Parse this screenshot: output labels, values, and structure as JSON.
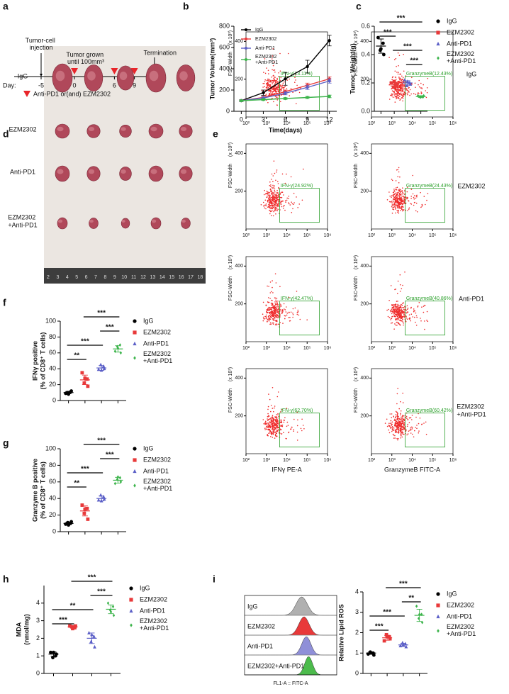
{
  "panel_labels": [
    "a",
    "b",
    "c",
    "d",
    "e",
    "f",
    "g",
    "h",
    "i"
  ],
  "timeline": {
    "day_label": "Day:",
    "days": [
      -5,
      0,
      3,
      6,
      9,
      12
    ],
    "treatment_days": [
      0,
      3,
      6,
      9
    ],
    "injection": "Tumor-cell injection",
    "grown": "Tumor grown until 100mm³",
    "termination": "Termination",
    "legend": "Anti-PD1 or(and) EZM2302"
  },
  "photo": {
    "groups": [
      "IgG",
      "EZM2302",
      "Anti-PD1",
      "EZM2302 +Anti-PD1"
    ],
    "ruler": [
      2,
      3,
      4,
      5,
      6,
      7,
      8,
      9,
      10,
      11,
      12,
      13,
      14,
      15,
      16,
      17,
      18
    ]
  },
  "flow": {
    "y_axis_label": "FSC-Width",
    "y_scale_label": "(x 10³)",
    "ylim": [
      0,
      450
    ],
    "yticks": [
      200,
      400
    ],
    "xlim": [
      2,
      6
    ],
    "xticks": [
      {
        "value": 2,
        "label": "10²"
      },
      {
        "value": 3,
        "label": "10³"
      },
      {
        "value": 4,
        "label": "10⁴"
      },
      {
        "value": 5,
        "label": "10⁵"
      },
      {
        "value": 6,
        "label": "10⁶"
      }
    ],
    "xlabels": [
      "IFNγ PE-A",
      "GranzymeB FITC-A"
    ],
    "groups": [
      {
        "name": "IgG",
        "gates": [
          "IFN-γ(13.11%)",
          "GranzymeB(12.43%)"
        ]
      },
      {
        "name": "EZM2302",
        "gates": [
          "IFN-γ(24.92%)",
          "GranzymeB(24.43%)"
        ]
      },
      {
        "name": "Anti-PD1",
        "gates": [
          "IFN-γ(42.47%)",
          "GranzymeB(40.86%)"
        ]
      },
      {
        "name": "EZM2302 +Anti-PD1",
        "gates": [
          "IFN-γ(62.70%)",
          "GranzymeB(60.42%)"
        ]
      }
    ]
  },
  "histogram": {
    "groups": [
      "IgG",
      "EZM2302",
      "Anti-PD1",
      "EZM2302+Anti-PD1"
    ],
    "colors": [
      "#b0b0b0",
      "#e8393a",
      "#8f8fd8",
      "#4cbb4c"
    ],
    "xlabel": "FL1-A :: FITC-A"
  },
  "chart_data": [
    {
      "type": "line",
      "xlabel": "Time(days)",
      "ylabel": [
        "Tumor Volume(mm³)"
      ],
      "x": [
        0,
        3,
        6,
        9,
        12
      ],
      "xlim": [
        -1,
        13
      ],
      "xticks": [
        0,
        3,
        6,
        9,
        12
      ],
      "ylim": [
        0,
        800
      ],
      "yticks": [
        0,
        200,
        400,
        600,
        800
      ],
      "legend": "upper left",
      "series": [
        {
          "name": "IgG",
          "color": "#000000",
          "values": [
            100,
            175,
            305,
            420,
            665
          ],
          "errors": [
            8,
            25,
            60,
            60,
            50
          ]
        },
        {
          "name": "EZM2302",
          "color": "#e8393a",
          "values": [
            100,
            130,
            185,
            245,
            305
          ],
          "errors": [
            5,
            10,
            15,
            20,
            20
          ]
        },
        {
          "name": "Anti-PD1",
          "color": "#5b5fc7",
          "values": [
            100,
            125,
            170,
            225,
            285
          ],
          "errors": [
            5,
            10,
            15,
            20,
            20
          ]
        },
        {
          "name": "EZM2302 +Anti-PD1",
          "color": "#3cb44b",
          "values": [
            100,
            110,
            120,
            130,
            140
          ],
          "errors": [
            5,
            8,
            8,
            10,
            12
          ]
        }
      ]
    },
    {
      "type": "dot",
      "ylabel": [
        "Tumor Weight(g)"
      ],
      "ylim": [
        0,
        0.6
      ],
      "yticks": [
        {
          "value": 0,
          "label": "0.0"
        },
        {
          "value": 0.2,
          "label": "0.2"
        },
        {
          "value": 0.4,
          "label": "0.4"
        },
        {
          "value": 0.6,
          "label": "0.6"
        }
      ],
      "series": [
        {
          "name": "IgG",
          "color": "#000000",
          "marker": "circle",
          "values": [
            0.52,
            0.48,
            0.43,
            0.4,
            0.44
          ],
          "mean": 0.46,
          "error": 0.05
        },
        {
          "name": "EZM2302",
          "color": "#e8393a",
          "marker": "square",
          "values": [
            0.2,
            0.18,
            0.17,
            0.19,
            0.21
          ],
          "mean": 0.19,
          "error": 0.015
        },
        {
          "name": "Anti-PD1",
          "color": "#5b5fc7",
          "marker": "triangle",
          "values": [
            0.22,
            0.2,
            0.18,
            0.19,
            0.21
          ],
          "mean": 0.2,
          "error": 0.015
        },
        {
          "name": "EZM2302 +Anti-PD1",
          "color": "#3cb44b",
          "marker": "diamond",
          "values": [
            0.11,
            0.1,
            0.1,
            0.11,
            0.1
          ],
          "mean": 0.104,
          "error": 0.006
        }
      ],
      "significance": [
        {
          "groups": [
            0,
            3
          ],
          "label": "***"
        },
        {
          "groups": [
            0,
            1
          ],
          "label": "***"
        },
        {
          "groups": [
            1,
            3
          ],
          "label": "***"
        },
        {
          "groups": [
            2,
            3
          ],
          "label": "***"
        }
      ]
    },
    {
      "type": "dot",
      "ylabel": [
        "IFNγ positive",
        "(% of CD8⁺ T cells)"
      ],
      "ylim": [
        0,
        100
      ],
      "yticks": [
        0,
        20,
        40,
        60,
        80,
        100
      ],
      "series": [
        {
          "name": "IgG",
          "color": "#000000",
          "marker": "circle",
          "values": [
            9,
            11,
            10,
            12,
            8
          ],
          "mean": 10,
          "error": 1.5
        },
        {
          "name": "EZM2302",
          "color": "#e8393a",
          "marker": "square",
          "values": [
            35,
            27,
            22,
            18,
            28
          ],
          "mean": 26,
          "error": 6
        },
        {
          "name": "Anti-PD1",
          "color": "#5b5fc7",
          "marker": "triangle",
          "values": [
            39,
            43,
            45,
            40,
            38
          ],
          "mean": 41,
          "error": 3
        },
        {
          "name": "EZM2302 +Anti-PD1",
          "color": "#3cb44b",
          "marker": "diamond",
          "values": [
            62,
            70,
            68,
            60,
            66
          ],
          "mean": 65,
          "error": 4
        }
      ],
      "significance": [
        {
          "groups": [
            1,
            3
          ],
          "label": "***"
        },
        {
          "groups": [
            2,
            3
          ],
          "label": "***"
        },
        {
          "groups": [
            0,
            2
          ],
          "label": "***"
        },
        {
          "groups": [
            0,
            1
          ],
          "label": "**"
        }
      ]
    },
    {
      "type": "dot",
      "ylabel": [
        "Granzyme B positive",
        "(% of CD8⁺ T cells)"
      ],
      "ylim": [
        0,
        100
      ],
      "yticks": [
        0,
        20,
        40,
        60,
        80,
        100
      ],
      "series": [
        {
          "name": "IgG",
          "color": "#000000",
          "marker": "circle",
          "values": [
            9,
            10,
            11,
            12,
            8
          ],
          "mean": 10,
          "error": 1.5
        },
        {
          "name": "EZM2302",
          "color": "#e8393a",
          "marker": "square",
          "values": [
            32,
            28,
            22,
            15,
            27
          ],
          "mean": 25,
          "error": 6
        },
        {
          "name": "Anti-PD1",
          "color": "#5b5fc7",
          "marker": "triangle",
          "values": [
            38,
            42,
            44,
            39,
            37
          ],
          "mean": 40,
          "error": 3
        },
        {
          "name": "EZM2302 +Anti-PD1",
          "color": "#3cb44b",
          "marker": "diamond",
          "values": [
            58,
            65,
            63,
            60,
            66
          ],
          "mean": 62,
          "error": 3.5
        }
      ],
      "significance": [
        {
          "groups": [
            1,
            3
          ],
          "label": "***"
        },
        {
          "groups": [
            2,
            3
          ],
          "label": "***"
        },
        {
          "groups": [
            0,
            2
          ],
          "label": "***"
        },
        {
          "groups": [
            0,
            1
          ],
          "label": "**"
        }
      ]
    },
    {
      "type": "dot",
      "ylabel": [
        "MDA",
        "(nmol/mg)"
      ],
      "ylim": [
        0,
        5
      ],
      "yticks": [
        0,
        1,
        2,
        3,
        4
      ],
      "series": [
        {
          "name": "IgG",
          "color": "#000000",
          "marker": "circle",
          "values": [
            1.2,
            1.0,
            0.9,
            1.1,
            1.2
          ],
          "mean": 1.1,
          "error": 0.12
        },
        {
          "name": "EZM2302",
          "color": "#e8393a",
          "marker": "square",
          "values": [
            2.7,
            2.6,
            2.65,
            2.7,
            2.55
          ],
          "mean": 2.65,
          "error": 0.06
        },
        {
          "name": "Anti-PD1",
          "color": "#5b5fc7",
          "marker": "triangle",
          "values": [
            2.3,
            2.1,
            1.8,
            1.5,
            2.2
          ],
          "mean": 2.0,
          "error": 0.3
        },
        {
          "name": "EZM2302 +Anti-PD1",
          "color": "#3cb44b",
          "marker": "diamond",
          "values": [
            4.0,
            3.8,
            3.6,
            3.3,
            3.5
          ],
          "mean": 3.65,
          "error": 0.25
        }
      ],
      "significance": [
        {
          "groups": [
            1,
            3
          ],
          "label": "***"
        },
        {
          "groups": [
            2,
            3
          ],
          "label": "***"
        },
        {
          "groups": [
            0,
            2
          ],
          "label": "**"
        },
        {
          "groups": [
            0,
            1
          ],
          "label": "***"
        }
      ]
    },
    {
      "type": "dot",
      "ylabel": [
        "Relative Lipid ROS"
      ],
      "ylim": [
        0,
        4
      ],
      "yticks": [
        0,
        1,
        2,
        3,
        4
      ],
      "series": [
        {
          "name": "IgG",
          "color": "#000000",
          "marker": "circle",
          "values": [
            0.95,
            1.0,
            1.05,
            0.9,
            1.0
          ],
          "mean": 1.0,
          "error": 0.06
        },
        {
          "name": "EZM2302",
          "color": "#e8393a",
          "marker": "square",
          "values": [
            1.6,
            1.8,
            1.9,
            1.7,
            1.8
          ],
          "mean": 1.75,
          "error": 0.12
        },
        {
          "name": "Anti-PD1",
          "color": "#5b5fc7",
          "marker": "triangle",
          "values": [
            1.35,
            1.45,
            1.5,
            1.3,
            1.4
          ],
          "mean": 1.4,
          "error": 0.08
        },
        {
          "name": "EZM2302 +Anti-PD1",
          "color": "#3cb44b",
          "marker": "diamond",
          "values": [
            3.3,
            2.9,
            2.7,
            2.5,
            2.9
          ],
          "mean": 2.85,
          "error": 0.3
        }
      ],
      "significance": [
        {
          "groups": [
            1,
            3
          ],
          "label": "***"
        },
        {
          "groups": [
            2,
            3
          ],
          "label": "**"
        },
        {
          "groups": [
            0,
            2
          ],
          "label": "***"
        },
        {
          "groups": [
            0,
            1
          ],
          "label": "***"
        }
      ]
    }
  ]
}
